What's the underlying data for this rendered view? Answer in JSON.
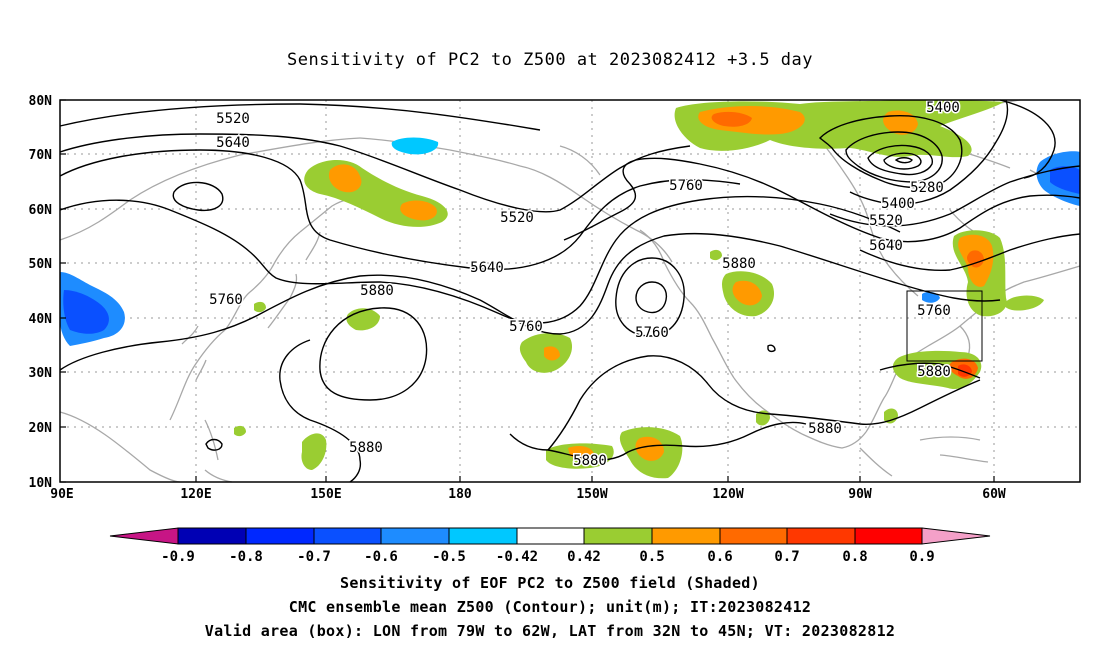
{
  "title": "Sensitivity of PC2 to Z500 at 2023082412 +3.5 day",
  "axes": {
    "lat_labels": [
      "80N",
      "70N",
      "60N",
      "50N",
      "40N",
      "30N",
      "20N",
      "10N"
    ],
    "lon_labels": [
      "90E",
      "120E",
      "150E",
      "180",
      "150W",
      "120W",
      "90W",
      "60W"
    ]
  },
  "contour_labels": {
    "c5520a": "5520",
    "c5640a": "5640",
    "c5520b": "5520",
    "c5760a": "5760",
    "c5640b": "5640",
    "c5760b": "5760",
    "c5880a": "5880",
    "c5760c": "5760",
    "c5760d": "5760",
    "c5880b": "5880",
    "c5880c": "5880",
    "c5880d": "5880",
    "c5400a": "5400",
    "c5280": "5280",
    "c5400b": "5400",
    "c5520c": "5520",
    "c5640c": "5640",
    "c5760e": "5760",
    "c5880e": "5880",
    "c5880f": "5880"
  },
  "colorbar": {
    "labels": [
      "-0.9",
      "-0.8",
      "-0.7",
      "-0.6",
      "-0.5",
      "-0.42",
      "0.42",
      "0.5",
      "0.6",
      "0.7",
      "0.8",
      "0.9"
    ],
    "colors": [
      "#c71585",
      "#0000b4",
      "#0028ff",
      "#0a50ff",
      "#1e8cff",
      "#00c8ff",
      "#ffffff",
      "#9acd32",
      "#ff9a00",
      "#ff6a00",
      "#ff3800",
      "#ff0000",
      "#f4a0c8"
    ]
  },
  "captions": {
    "line1": "Sensitivity of EOF PC2 to Z500 field (Shaded)",
    "line2": "CMC ensemble mean Z500 (Contour); unit(m); IT:2023082412",
    "line3": "Valid area (box): LON from 79W to 62W, LAT from 32N to 45N; VT: 2023082812"
  }
}
